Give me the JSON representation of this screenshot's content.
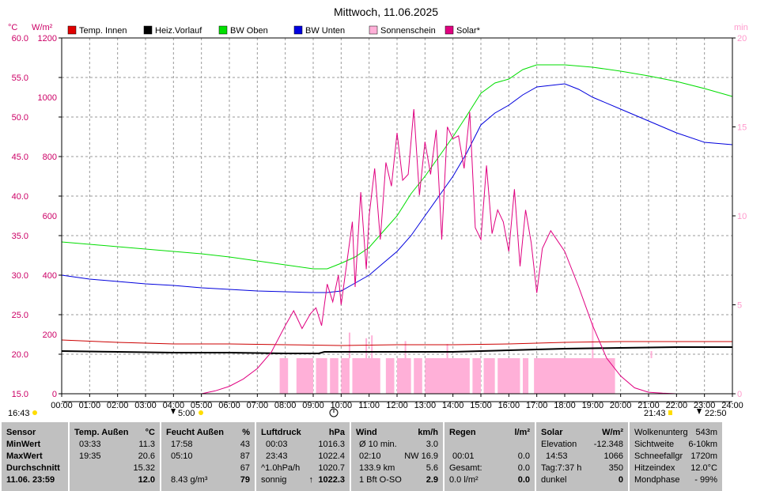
{
  "title": "Mittwoch, 11.06.2025",
  "units": {
    "left1": "°C",
    "left2": "W/m²",
    "right": "min"
  },
  "legend": [
    {
      "name": "Temp. Innen",
      "color": "#e00000"
    },
    {
      "name": "Heiz.Vorlauf",
      "color": "#000000"
    },
    {
      "name": "BW Oben",
      "color": "#00e000"
    },
    {
      "name": "BW Unten",
      "color": "#0000e0"
    },
    {
      "name": "Sonnenschein",
      "color": "#ffb0d8"
    },
    {
      "name": "Solar*",
      "color": "#e00080"
    }
  ],
  "times": {
    "sunrise": "16:43",
    "t1": "5:00",
    "t2": "21:43",
    "t3": "22:50"
  },
  "chart_data": {
    "type": "line",
    "x_ticks": [
      "00:00",
      "01:00",
      "02:00",
      "03:00",
      "04:00",
      "05:00",
      "06:00",
      "07:00",
      "08:00",
      "09:00",
      "10:00",
      "11:00",
      "12:00",
      "13:00",
      "14:00",
      "15:00",
      "16:00",
      "17:00",
      "18:00",
      "19:00",
      "20:00",
      "21:00",
      "22:00",
      "23:00",
      "24:00"
    ],
    "y_left_temp_ticks": [
      "15.0",
      "20.0",
      "25.0",
      "30.0",
      "35.0",
      "40.0",
      "45.0",
      "50.0",
      "55.0",
      "60.0"
    ],
    "y_left_solar_ticks": [
      "0",
      "200",
      "400",
      "600",
      "800",
      "1000",
      "1200"
    ],
    "y_right_ticks": [
      "0",
      "5",
      "10",
      "15",
      "20"
    ],
    "temp_range": [
      15,
      60
    ],
    "solar_range": [
      0,
      1200
    ],
    "sun_range": [
      0,
      20
    ],
    "series": [
      {
        "name": "Temp. Innen",
        "color": "#cc0000",
        "x": [
          0,
          2,
          4,
          6,
          8,
          10,
          12,
          14,
          16,
          18,
          20,
          22,
          24
        ],
        "y": [
          21.8,
          21.5,
          21.3,
          21.3,
          21.2,
          21.1,
          21.2,
          21.2,
          21.3,
          21.5,
          21.6,
          21.6,
          21.6
        ]
      },
      {
        "name": "Heiz.Vorlauf",
        "color": "#000000",
        "x": [
          0,
          2,
          4,
          6,
          8,
          9.2,
          9.4,
          12,
          14,
          16,
          17,
          18,
          20,
          22,
          24
        ],
        "y": [
          20.4,
          20.3,
          20.2,
          20.2,
          20.1,
          20.1,
          20.3,
          20.3,
          20.3,
          20.5,
          20.6,
          20.7,
          20.8,
          20.9,
          20.9
        ]
      },
      {
        "name": "BW Oben",
        "color": "#00dd00",
        "x": [
          0,
          1,
          2,
          3,
          4,
          5,
          6,
          7,
          8,
          9,
          9.5,
          10,
          10.5,
          11,
          11.5,
          12,
          12.5,
          13,
          13.5,
          14,
          14.5,
          15,
          15.5,
          16,
          16.5,
          17,
          18,
          19,
          20,
          21,
          22,
          23,
          24
        ],
        "y": [
          34.2,
          33.9,
          33.6,
          33.3,
          33,
          32.7,
          32.3,
          31.8,
          31.3,
          30.8,
          30.8,
          31.5,
          32.3,
          33.5,
          35.5,
          37.5,
          40.3,
          42.5,
          45,
          47.5,
          50.2,
          53,
          54.3,
          54.8,
          56,
          56.6,
          56.6,
          56.3,
          55.8,
          55.2,
          54.5,
          53.6,
          52.6
        ]
      },
      {
        "name": "BW Unten",
        "color": "#0000dd",
        "x": [
          0,
          1,
          2,
          3,
          4,
          5,
          6,
          7,
          8,
          9,
          9.5,
          10,
          10.5,
          11,
          11.5,
          12,
          12.5,
          13,
          13.5,
          14,
          14.5,
          15,
          15.5,
          16,
          16.5,
          17,
          17.5,
          18,
          18.5,
          19,
          20,
          21,
          22,
          23,
          24
        ],
        "y": [
          30,
          29.5,
          29.2,
          28.9,
          28.7,
          28.4,
          28.2,
          28,
          27.9,
          27.8,
          27.8,
          28,
          29,
          30,
          31.5,
          33,
          35,
          37.5,
          40,
          42.5,
          45.5,
          49,
          50.5,
          51.5,
          52.8,
          53.8,
          54,
          54.2,
          53.5,
          52.5,
          51,
          49.5,
          48,
          46.8,
          46.5
        ]
      },
      {
        "name": "Solar*",
        "color": "#e00080",
        "x": [
          5,
          5.5,
          6,
          6.5,
          7,
          7.5,
          8,
          8.3,
          8.6,
          8.9,
          9.1,
          9.3,
          9.5,
          9.7,
          9.9,
          10,
          10.2,
          10.4,
          10.5,
          10.7,
          10.9,
          11,
          11.2,
          11.4,
          11.6,
          11.8,
          12,
          12.2,
          12.4,
          12.6,
          12.8,
          13,
          13.2,
          13.4,
          13.6,
          13.8,
          14,
          14.2,
          14.4,
          14.6,
          14.8,
          15,
          15.2,
          15.4,
          15.6,
          15.8,
          16,
          16.2,
          16.4,
          16.6,
          16.8,
          17,
          17.2,
          17.5,
          18,
          18.5,
          19,
          19.5,
          20,
          20.5,
          21,
          21.5,
          22
        ],
        "y": [
          0,
          10,
          25,
          50,
          85,
          140,
          230,
          280,
          220,
          270,
          290,
          230,
          370,
          310,
          400,
          300,
          440,
          580,
          360,
          680,
          420,
          600,
          760,
          520,
          780,
          700,
          880,
          720,
          740,
          960,
          670,
          850,
          740,
          890,
          520,
          900,
          860,
          870,
          760,
          950,
          560,
          520,
          770,
          540,
          620,
          580,
          480,
          690,
          430,
          620,
          510,
          340,
          490,
          550,
          480,
          360,
          230,
          120,
          60,
          20,
          5,
          2,
          0
        ]
      }
    ],
    "sunshine_segments": [
      [
        7.8,
        8.1
      ],
      [
        8.4,
        9.0
      ],
      [
        9.1,
        9.5
      ],
      [
        9.6,
        9.9
      ],
      [
        10.0,
        10.3
      ],
      [
        10.4,
        11.4
      ],
      [
        11.6,
        11.9
      ],
      [
        12.0,
        12.5
      ],
      [
        12.6,
        12.9
      ],
      [
        13.0,
        14.6
      ],
      [
        14.7,
        15.0
      ],
      [
        15.1,
        15.5
      ],
      [
        15.6,
        16.4
      ],
      [
        16.5,
        16.7
      ],
      [
        16.9,
        19.8
      ]
    ],
    "solar_spikes": [
      [
        10.3,
        380
      ],
      [
        10.9,
        340
      ],
      [
        11.1,
        360
      ],
      [
        12.3,
        320
      ],
      [
        13.8,
        300
      ],
      [
        19.0,
        450
      ],
      [
        21.1,
        250
      ]
    ]
  },
  "panel": {
    "sensor": {
      "header": "Sensor",
      "r1": "MinWert",
      "r2": "MaxWert",
      "r3": "Durchschnitt",
      "r4": "11.06. 23:59"
    },
    "temp": {
      "header": "Temp. Außen",
      "unit": "°C",
      "r1t": "03:33",
      "r1v": "11.3",
      "r2t": "19:35",
      "r2v": "20.6",
      "r3v": "15.32",
      "r4v": "12.0"
    },
    "feucht": {
      "header": "Feucht Außen",
      "unit": "%",
      "r1t": "17:58",
      "r1v": "43",
      "r2t": "05:10",
      "r2v": "87",
      "r3v": "67",
      "r4t": "8.43 g/m³",
      "r4v": "79"
    },
    "luft": {
      "header": "Luftdruck",
      "unit": "hPa",
      "r1t": "00:03",
      "r1v": "1016.3",
      "r2t": "23:43",
      "r2v": "1022.4",
      "r3t": "^1.0hPa/h",
      "r3v": "1020.7",
      "r4t": "sonnig",
      "r4v": "1022.3"
    },
    "wind": {
      "header": "Wind",
      "unit": "km/h",
      "r1t": "Ø 10 min.",
      "r1v": "3.0",
      "r2t": "02:10",
      "r2v": "NW 16.9",
      "r3t": "133.9 km",
      "r3v": "5.6",
      "r4t": "1 Bft O-SO",
      "r4v": "2.9"
    },
    "regen": {
      "header": "Regen",
      "unit": "l/m²",
      "r2t": "00:01",
      "r2v": "0.0",
      "r3t": "Gesamt:",
      "r3v": "0.0",
      "r4t": "0.0 l/m²",
      "r4v": "0.0"
    },
    "solar": {
      "header": "Solar",
      "unit": "W/m²",
      "r1t": "Elevation",
      "r1v": "-12.348",
      "r2t": "14:53",
      "r2v": "1066",
      "r3t": "Tag:7:37 h",
      "r3v": "350",
      "r4t": "dunkel",
      "r4v": "0"
    },
    "misc": {
      "r0t": "Wolkenunterg",
      "r0v": "543m",
      "r1t": "Sichtweite",
      "r1v": "6-10km",
      "r2t": "Schneefallgr",
      "r2v": "1720m",
      "r3t": "Hitzeindex",
      "r3v": "12.0°C",
      "r4t": "Mondphase",
      "r4v": "- 99%"
    }
  }
}
